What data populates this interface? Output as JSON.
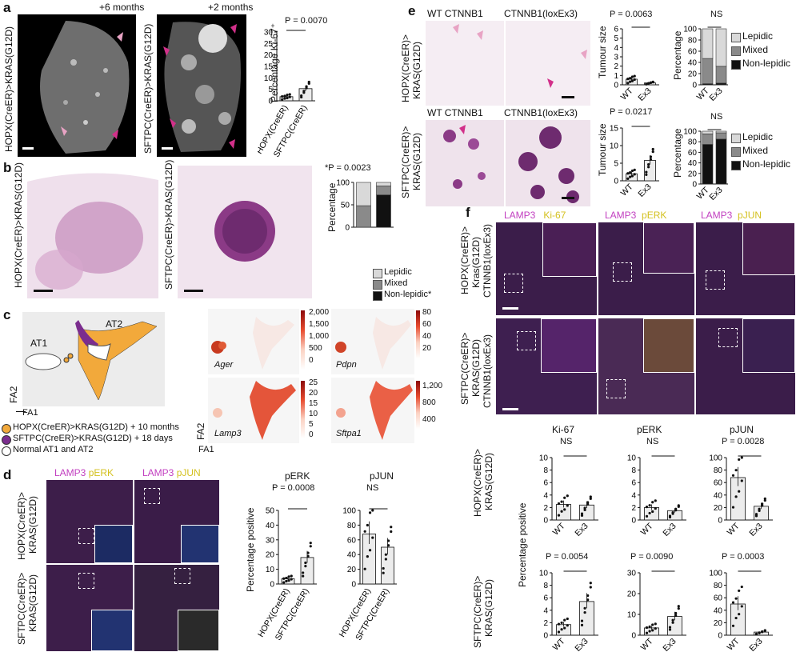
{
  "panels": {
    "a": "a",
    "b": "b",
    "c": "c",
    "d": "d",
    "e": "e",
    "f": "f"
  },
  "a": {
    "img1_title": "+6 months",
    "img2_title": "+2 months",
    "img1_side": "HOPX(CreER)>KRAS(G12D)",
    "img2_side": "SFTPC(CreER)>KRAS(G12D)",
    "pval": "P = 0.0070"
  },
  "b": {
    "img1_side": "HOPX(CreER)>KRAS(G12D)",
    "img2_side": "SFTPC(CreER)>KRAS(G12D)",
    "pval": "*P = 0.0023",
    "legend": [
      "Lepidic",
      "Mixed",
      "Non-lepidic*"
    ]
  },
  "c": {
    "at1": "AT1",
    "at2": "AT2",
    "fa1": "FA1",
    "fa2": "FA2",
    "genes": [
      "Ager",
      "Pdpn",
      "Lamp3",
      "Sftpa1"
    ],
    "legend": [
      "HOPX(CreER)>KRAS(G12D) + 10 months",
      "SFTPC(CreER)>KRAS(G12D) + 18 days",
      "Normal AT1 and AT2"
    ],
    "colors": {
      "hopx": "#f2a93b",
      "sftpc": "#7b2d8e",
      "normal": "#ffffff"
    },
    "scale_ager": [
      "2,000",
      "1,500",
      "1,000",
      "500",
      "0"
    ],
    "scale_pdpn": [
      "80",
      "60",
      "40",
      "20"
    ],
    "scale_lamp3": [
      "25",
      "20",
      "15",
      "10",
      "5",
      "0"
    ],
    "scale_sftpa1": [
      "1,200",
      "800",
      "400"
    ]
  },
  "d": {
    "stain1a": "LAMP3",
    "stain1b": "pERK",
    "stain2a": "LAMP3",
    "stain2b": "pJUN",
    "row1": "HOPX(CreER)>",
    "row1b": "KRAS(G12D)",
    "row2": "SFTPC(CreER)>",
    "row2b": "KRAS(G12D)",
    "perk_title": "pERK",
    "pjun_title": "pJUN",
    "perk_p": "P = 0.0008",
    "pjun_p": "NS",
    "ylabel": "Percentage positive"
  },
  "e": {
    "col1": "WT CTNNB1",
    "col2": "CTNNB1(loxEx3)",
    "col1b": "WT CTNNB1",
    "col2b": "CTNNB1(loxEx3)",
    "row1": "HOPX(CreER)>",
    "row1b": "KRAS(G12D)",
    "row2": "SFTPC(CreER)>",
    "row2b": "KRAS(G12D)",
    "p1": "P = 0.0063",
    "p2": "P = 0.0217",
    "ns1": "NS",
    "ns2": "NS",
    "ylabel": "Tumour size",
    "pct": "Percentage",
    "legend": [
      "Lepidic",
      "Mixed",
      "Non-lepidic"
    ]
  },
  "f": {
    "stains": [
      [
        "LAMP3",
        "Ki-67"
      ],
      [
        "LAMP3",
        "pERK"
      ],
      [
        "LAMP3",
        "pJUN"
      ]
    ],
    "row1": [
      "HOPX(CreER)>",
      "Kras(G12D)",
      "CTNNB1(loxEx3)"
    ],
    "row2": [
      "SFTPC(CreER)>",
      "KRAS(G12D)",
      "CTNNB1(loxEx3)"
    ],
    "titles": [
      "Ki-67",
      "pERK",
      "pJUN"
    ],
    "top_p": [
      "NS",
      "NS",
      "P = 0.0028"
    ],
    "bot_p": [
      "P = 0.0054",
      "P = 0.0090",
      "P = 0.0003"
    ],
    "row1_label": "HOPX(CreER)>",
    "row1_label_b": "KRAS(G12D)",
    "row2_label": "SFTPC(CreER)>",
    "row2_label_b": "KRAS(G12D)",
    "ylabel": "Percentage positive"
  },
  "chart_data": [
    {
      "type": "bar",
      "title": "",
      "ylabel": "Percentage Ki-67+",
      "categories": [
        "HOPX(CreER)",
        "SFTPC(CreER)"
      ],
      "values": [
        1.8,
        5.3
      ],
      "ylim": [
        0,
        30
      ],
      "yticks": [
        0,
        5,
        10,
        15,
        20,
        25,
        30
      ],
      "annotation": "P = 0.0070"
    },
    {
      "type": "bar",
      "stacked": true,
      "ylabel": "Percentage",
      "categories": [
        "HOPX(CreER)",
        "SFTPC(CreER)"
      ],
      "series": [
        {
          "name": "Non-lepidic*",
          "values": [
            0,
            72
          ]
        },
        {
          "name": "Mixed",
          "values": [
            48,
            20
          ]
        },
        {
          "name": "Lepidic",
          "values": [
            52,
            8
          ]
        }
      ],
      "ylim": [
        0,
        100
      ],
      "yticks": [
        0,
        50,
        100
      ]
    },
    {
      "type": "bar",
      "title": "pERK",
      "ylabel": "Percentage positive",
      "categories": [
        "HOPX(CreER)",
        "SFTPC(CreER)"
      ],
      "values": [
        3.5,
        18
      ],
      "ylim": [
        0,
        50
      ],
      "yticks": [
        0,
        10,
        20,
        30,
        40,
        50
      ],
      "annotation": "P = 0.0008"
    },
    {
      "type": "bar",
      "title": "pJUN",
      "categories": [
        "HOPX(CreER)",
        "SFTPC(CreER)"
      ],
      "values": [
        68,
        50
      ],
      "ylim": [
        0,
        100
      ],
      "yticks": [
        0,
        20,
        40,
        60,
        80,
        100
      ],
      "annotation": "NS"
    },
    {
      "type": "bar",
      "ylabel": "Tumour size",
      "categories": [
        "WT",
        "Ex3"
      ],
      "values": [
        0.6,
        0.2
      ],
      "ylim": [
        0,
        6
      ],
      "yticks": [
        0,
        1,
        2,
        3,
        4,
        5,
        6
      ],
      "annotation": "P = 0.0063"
    },
    {
      "type": "bar",
      "ylabel": "Tumour size",
      "categories": [
        "WT",
        "Ex3"
      ],
      "values": [
        2.0,
        5.8
      ],
      "ylim": [
        0,
        15
      ],
      "yticks": [
        0,
        5,
        10,
        15
      ],
      "annotation": "P = 0.0217"
    },
    {
      "type": "bar",
      "stacked": true,
      "ylabel": "Percentage",
      "categories": [
        "WT",
        "Ex3"
      ],
      "series": [
        {
          "name": "Non-lepidic",
          "values": [
            2,
            3
          ]
        },
        {
          "name": "Mixed",
          "values": [
            45,
            30
          ]
        },
        {
          "name": "Lepidic",
          "values": [
            53,
            67
          ]
        }
      ],
      "ylim": [
        0,
        100
      ],
      "yticks": [
        0,
        20,
        40,
        60,
        80,
        100
      ],
      "annotation": "NS"
    },
    {
      "type": "bar",
      "stacked": true,
      "ylabel": "Percentage",
      "categories": [
        "WT",
        "Ex3"
      ],
      "series": [
        {
          "name": "Non-lepidic",
          "values": [
            75,
            85
          ]
        },
        {
          "name": "Mixed",
          "values": [
            20,
            12
          ]
        },
        {
          "name": "Lepidic",
          "values": [
            5,
            3
          ]
        }
      ],
      "ylim": [
        0,
        100
      ],
      "yticks": [
        0,
        20,
        40,
        60,
        80,
        100
      ],
      "annotation": "NS"
    },
    {
      "type": "bar",
      "title": "Ki-67",
      "categories": [
        "WT",
        "Ex3"
      ],
      "values": [
        2.5,
        2.4
      ],
      "ylim": [
        0,
        10
      ],
      "yticks": [
        0,
        2,
        4,
        6,
        8,
        10
      ],
      "annotation": "NS"
    },
    {
      "type": "bar",
      "title": "pERK",
      "categories": [
        "WT",
        "Ex3"
      ],
      "values": [
        2.0,
        1.5
      ],
      "ylim": [
        0,
        10
      ],
      "yticks": [
        0,
        2,
        4,
        6,
        8,
        10
      ],
      "annotation": "NS"
    },
    {
      "type": "bar",
      "title": "pJUN",
      "categories": [
        "WT",
        "Ex3"
      ],
      "values": [
        68,
        22
      ],
      "ylim": [
        0,
        100
      ],
      "yticks": [
        0,
        20,
        40,
        60,
        80,
        100
      ],
      "annotation": "P = 0.0028"
    },
    {
      "type": "bar",
      "categories": [
        "WT",
        "Ex3"
      ],
      "values": [
        1.7,
        5.4
      ],
      "ylim": [
        0,
        10
      ],
      "yticks": [
        0,
        2,
        4,
        6,
        8,
        10
      ],
      "annotation": "P = 0.0054"
    },
    {
      "type": "bar",
      "categories": [
        "WT",
        "Ex3"
      ],
      "values": [
        3.5,
        9.0
      ],
      "ylim": [
        0,
        30
      ],
      "yticks": [
        0,
        10,
        20,
        30
      ],
      "annotation": "P = 0.0090"
    },
    {
      "type": "bar",
      "categories": [
        "WT",
        "Ex3"
      ],
      "values": [
        50,
        5
      ],
      "ylim": [
        0,
        100
      ],
      "yticks": [
        0,
        20,
        40,
        60,
        80,
        100
      ],
      "annotation": "P = 0.0003"
    }
  ]
}
